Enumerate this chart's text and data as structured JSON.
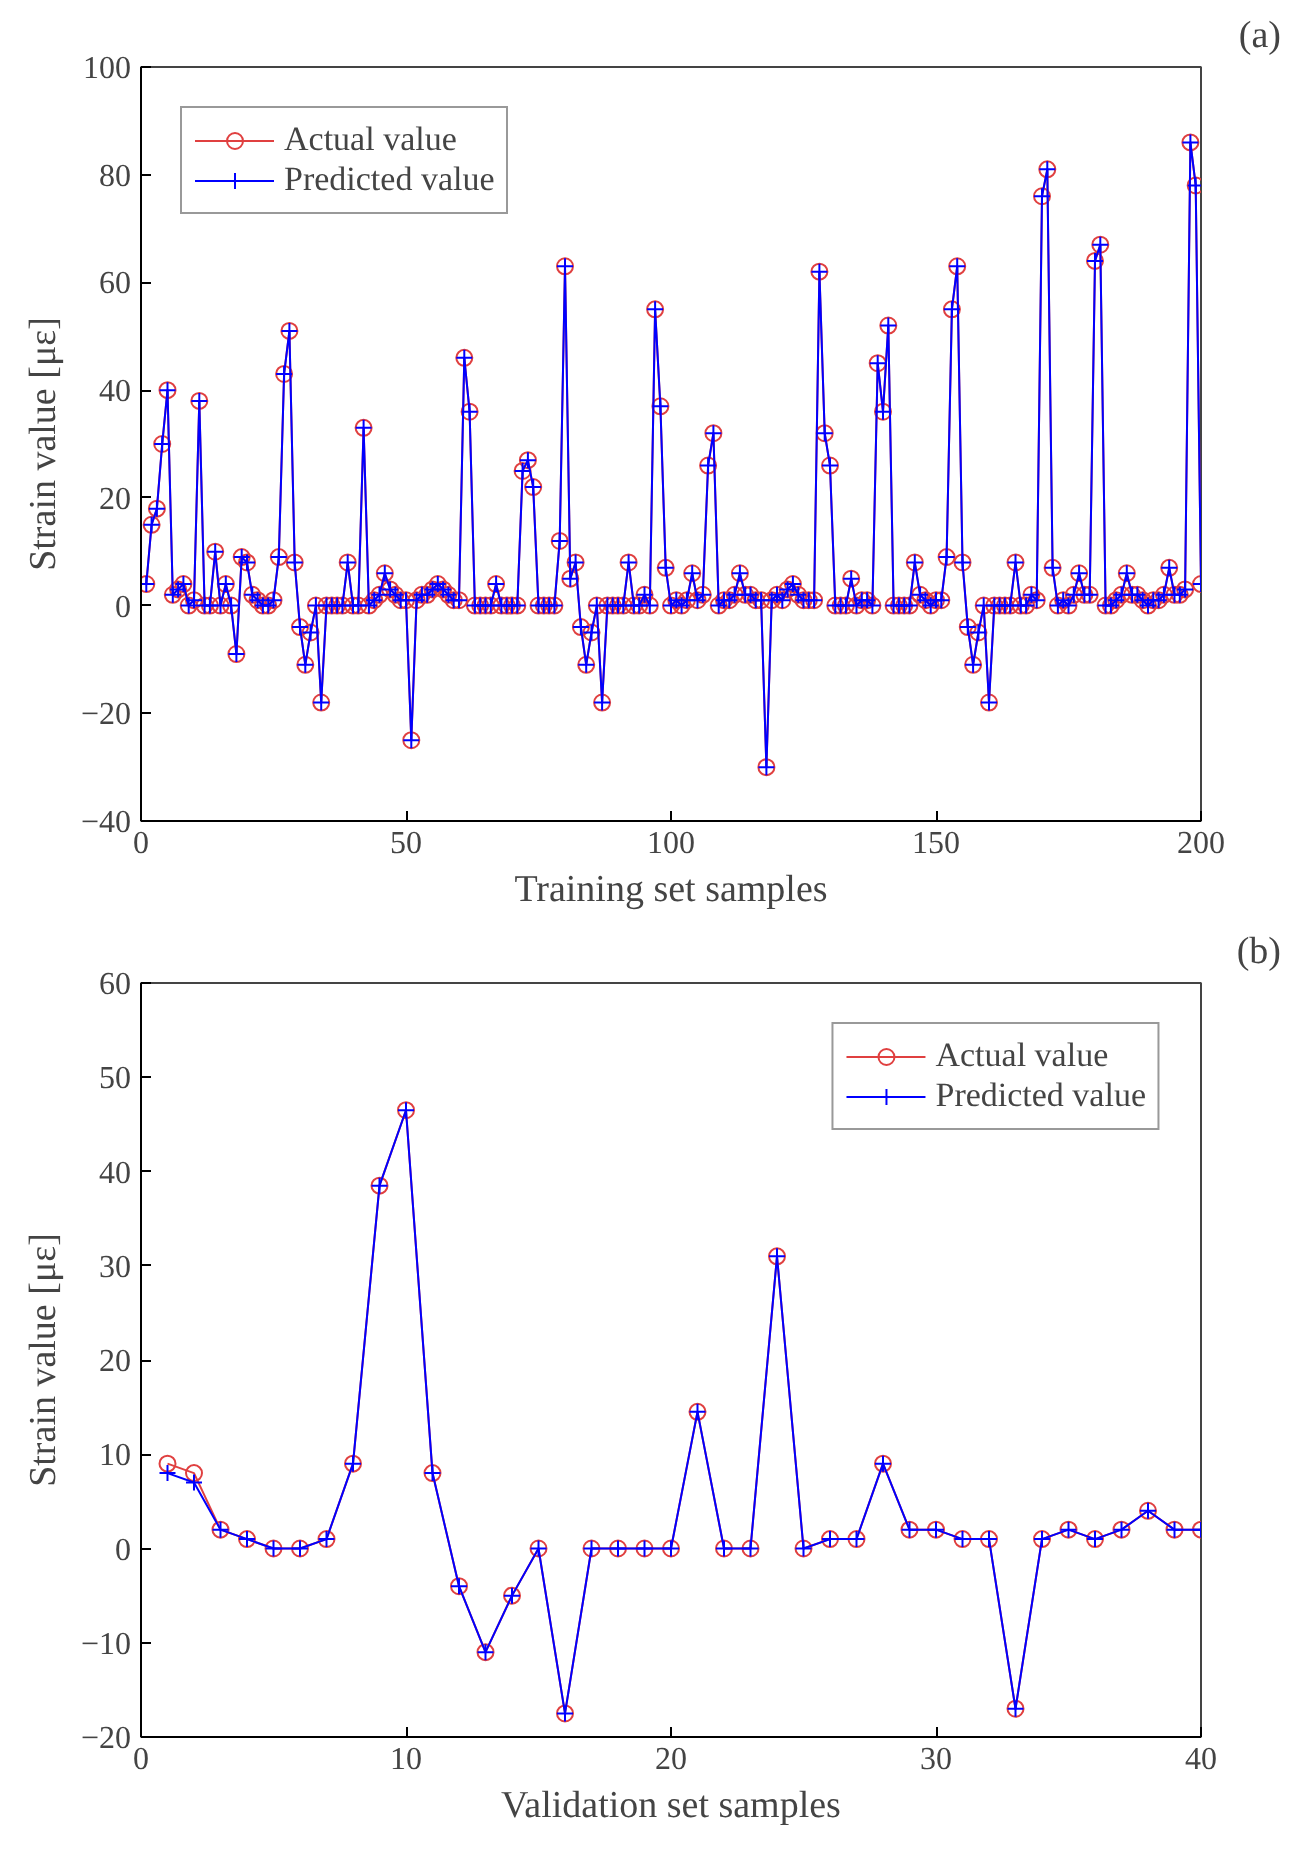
{
  "chart_data": [
    {
      "type": "line",
      "xlabel": "Training set samples",
      "ylabel": "Strain value [με]",
      "annotations": [
        "(a)"
      ],
      "x": [
        1,
        2,
        3,
        4,
        5,
        6,
        7,
        8,
        9,
        10,
        11,
        12,
        13,
        14,
        15,
        16,
        17,
        18,
        19,
        20,
        21,
        22,
        23,
        24,
        25,
        26,
        27,
        28,
        29,
        30,
        31,
        32,
        33,
        34,
        35,
        36,
        37,
        38,
        39,
        40,
        41,
        42,
        43,
        44,
        45,
        46,
        47,
        48,
        49,
        50,
        51,
        52,
        53,
        54,
        55,
        56,
        57,
        58,
        59,
        60,
        61,
        62,
        63,
        64,
        65,
        66,
        67,
        68,
        69,
        70,
        71,
        72,
        73,
        74,
        75,
        76,
        77,
        78,
        79,
        80,
        81,
        82,
        83,
        84,
        85,
        86,
        87,
        88,
        89,
        90,
        91,
        92,
        93,
        94,
        95,
        96,
        97,
        98,
        99,
        100,
        101,
        102,
        103,
        104,
        105,
        106,
        107,
        108,
        109,
        110,
        111,
        112,
        113,
        114,
        115,
        116,
        117,
        118,
        119,
        120,
        121,
        122,
        123,
        124,
        125,
        126,
        127,
        128,
        129,
        130,
        131,
        132,
        133,
        134,
        135,
        136,
        137,
        138,
        139,
        140,
        141,
        142,
        143,
        144,
        145,
        146,
        147,
        148,
        149,
        150,
        151,
        152,
        153,
        154,
        155,
        156,
        157,
        158,
        159,
        160,
        161,
        162,
        163,
        164,
        165,
        166,
        167,
        168,
        169,
        170,
        171,
        172,
        173,
        174,
        175,
        176,
        177,
        178,
        179,
        180,
        181,
        182,
        183,
        184,
        185,
        186,
        187,
        188,
        189,
        190,
        191,
        192,
        193,
        194,
        195,
        196,
        197,
        198,
        199,
        200
      ],
      "series": [
        {
          "name": "Actual value",
          "color": "#e04040",
          "marker": "circle",
          "values": [
            4,
            15,
            18,
            30,
            40,
            2,
            3,
            4,
            0,
            1,
            38,
            0,
            0,
            10,
            0,
            4,
            0,
            -9,
            9,
            8,
            2,
            1,
            0,
            0,
            1,
            9,
            43,
            51,
            8,
            -4,
            -11,
            -5,
            0,
            -18,
            0,
            0,
            0,
            0,
            8,
            0,
            0,
            33,
            0,
            1,
            2,
            6,
            3,
            2,
            1,
            1,
            -25,
            1,
            2,
            2,
            3,
            4,
            3,
            2,
            1,
            1,
            46,
            36,
            0,
            0,
            0,
            0,
            4,
            0,
            0,
            0,
            0,
            25,
            27,
            22,
            0,
            0,
            0,
            0,
            12,
            63,
            5,
            8,
            -4,
            -11,
            -5,
            0,
            -18,
            0,
            0,
            0,
            0,
            8,
            0,
            0,
            2,
            0,
            55,
            37,
            7,
            0,
            1,
            0,
            1,
            6,
            1,
            2,
            26,
            32,
            0,
            1,
            1,
            2,
            6,
            2,
            2,
            1,
            1,
            -30,
            1,
            2,
            1,
            3,
            4,
            2,
            1,
            1,
            1,
            62,
            32,
            26,
            0,
            0,
            0,
            5,
            0,
            1,
            1,
            0,
            45,
            36,
            52,
            0,
            0,
            0,
            0,
            8,
            2,
            1,
            0,
            1,
            1,
            9,
            55,
            63,
            8,
            -4,
            -11,
            -5,
            0,
            -18,
            0,
            0,
            0,
            0,
            8,
            0,
            0,
            2,
            1,
            76,
            81,
            7,
            0,
            1,
            0,
            2,
            6,
            2,
            2,
            64,
            67,
            0,
            0,
            1,
            2,
            6,
            2,
            2,
            1,
            0,
            1,
            1,
            2,
            7,
            2,
            2,
            3,
            86,
            78,
            4
          ]
        },
        {
          "name": "Predicted value",
          "color": "#0000ff",
          "marker": "cross",
          "values": [
            4,
            15,
            18,
            30,
            40,
            2,
            3,
            4,
            0,
            1,
            38,
            0,
            0,
            10,
            0,
            4,
            0,
            -9,
            9,
            8,
            2,
            1,
            0,
            0,
            1,
            9,
            43,
            51,
            8,
            -4,
            -11,
            -5,
            0,
            -18,
            0,
            0,
            0,
            0,
            8,
            0,
            0,
            33,
            0,
            1,
            2,
            6,
            3,
            2,
            1,
            1,
            -25,
            1,
            2,
            2,
            3,
            4,
            3,
            2,
            1,
            1,
            46,
            36,
            0,
            0,
            0,
            0,
            4,
            0,
            0,
            0,
            0,
            25,
            27,
            22,
            0,
            0,
            0,
            0,
            12,
            63,
            5,
            8,
            -4,
            -11,
            -5,
            0,
            -18,
            0,
            0,
            0,
            0,
            8,
            0,
            0,
            2,
            0,
            55,
            37,
            7,
            0,
            1,
            0,
            1,
            6,
            1,
            2,
            26,
            32,
            0,
            1,
            1,
            2,
            6,
            2,
            2,
            1,
            1,
            -30,
            1,
            2,
            1,
            3,
            4,
            2,
            1,
            1,
            1,
            62,
            32,
            26,
            0,
            0,
            0,
            5,
            0,
            1,
            1,
            0,
            45,
            36,
            52,
            0,
            0,
            0,
            0,
            8,
            2,
            1,
            0,
            1,
            1,
            9,
            55,
            63,
            8,
            -4,
            -11,
            -5,
            0,
            -18,
            0,
            0,
            0,
            0,
            8,
            0,
            0,
            2,
            1,
            76,
            81,
            7,
            0,
            1,
            0,
            2,
            6,
            2,
            2,
            64,
            67,
            0,
            0,
            1,
            2,
            6,
            2,
            2,
            1,
            0,
            1,
            1,
            2,
            7,
            2,
            2,
            3,
            86,
            78,
            4
          ]
        }
      ],
      "xlim": [
        0,
        200
      ],
      "xticks": [
        0,
        50,
        100,
        150,
        200
      ],
      "ylim": [
        -40,
        100
      ],
      "yticks": [
        -40,
        -20,
        0,
        20,
        40,
        60,
        80,
        100
      ],
      "legend": "top left"
    },
    {
      "type": "line",
      "xlabel": "Validation set samples",
      "ylabel": "Strain value [με]",
      "annotations": [
        "(b)"
      ],
      "x": [
        1,
        2,
        3,
        4,
        5,
        6,
        7,
        8,
        9,
        10,
        11,
        12,
        13,
        14,
        15,
        16,
        17,
        18,
        19,
        20,
        21,
        22,
        23,
        24,
        25,
        26,
        27,
        28,
        29,
        30,
        31,
        32,
        33,
        34,
        35,
        36,
        37,
        38,
        39,
        40
      ],
      "series": [
        {
          "name": "Actual value",
          "color": "#e04040",
          "marker": "circle",
          "values": [
            9,
            8,
            2,
            1,
            0,
            0,
            1,
            9,
            38.5,
            46.5,
            8,
            -4,
            -11,
            -5,
            0,
            -17.5,
            0,
            0,
            0,
            0,
            14.5,
            0,
            0,
            31,
            0,
            1,
            1,
            9,
            2,
            2,
            1,
            1,
            -17,
            1,
            2,
            1,
            2,
            4,
            2,
            2
          ]
        },
        {
          "name": "Predicted value",
          "color": "#0000ff",
          "marker": "cross",
          "values": [
            8,
            7,
            2,
            1,
            0,
            0,
            1,
            9,
            38.5,
            46.5,
            8,
            -4,
            -11,
            -5,
            0,
            -17.5,
            0,
            0,
            0,
            0,
            14.5,
            0,
            0,
            31,
            0,
            1,
            1,
            9,
            2,
            2,
            1,
            1,
            -17,
            1,
            2,
            1,
            2,
            4,
            2,
            2
          ]
        }
      ],
      "xlim": [
        0,
        40
      ],
      "xticks": [
        0,
        10,
        20,
        30,
        40
      ],
      "ylim": [
        -20,
        60
      ],
      "yticks": [
        -20,
        -10,
        0,
        10,
        20,
        30,
        40,
        50,
        60
      ],
      "legend": "top right"
    }
  ]
}
